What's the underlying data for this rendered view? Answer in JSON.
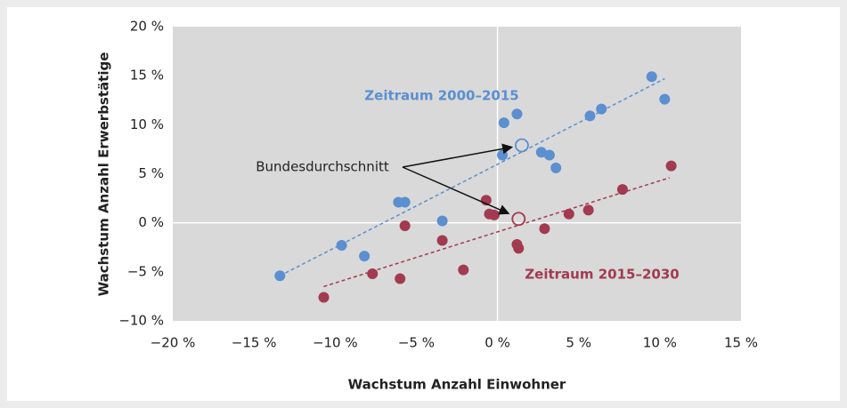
{
  "chart_data": {
    "type": "scatter",
    "x_label": "Wachstum Anzahl Einwohner",
    "y_label": "Wachstum Anzahl Erwerbstätige",
    "xlim": [
      -20,
      15
    ],
    "ylim": [
      -10,
      20
    ],
    "xticks": [
      {
        "value": -20,
        "label": "−20 %"
      },
      {
        "value": -15,
        "label": "−15 %"
      },
      {
        "value": -10,
        "label": "−10 %"
      },
      {
        "value": -5,
        "label": "−5 %"
      },
      {
        "value": 0,
        "label": "0 %"
      },
      {
        "value": 5,
        "label": "5 %"
      },
      {
        "value": 10,
        "label": "10 %"
      },
      {
        "value": 15,
        "label": "15 %"
      }
    ],
    "yticks": [
      {
        "value": -10,
        "label": "−10 %"
      },
      {
        "value": -5,
        "label": "−5 %"
      },
      {
        "value": 0,
        "label": "0 %"
      },
      {
        "value": 5,
        "label": "5 %"
      },
      {
        "value": 10,
        "label": "10 %"
      },
      {
        "value": 15,
        "label": "15 %"
      },
      {
        "value": 20,
        "label": "20 %"
      }
    ],
    "annotation": "Bundesdurchschnitt",
    "series": [
      {
        "name": "Zeitraum 2000–2015",
        "color": "#5b8fd0",
        "x": [
          -13.4,
          -9.6,
          -8.2,
          -6.1,
          -5.7,
          -3.4,
          0.4,
          1.2,
          0.3,
          2.7,
          3.2,
          3.6,
          5.7,
          6.4,
          9.5,
          10.3
        ],
        "values": [
          -5.4,
          -2.3,
          -3.4,
          2.1,
          2.1,
          0.2,
          10.2,
          11.1,
          6.9,
          7.2,
          6.9,
          5.6,
          10.9,
          11.6,
          14.9,
          12.6
        ],
        "average": {
          "x": 1.5,
          "y": 7.9
        },
        "trend": {
          "x": [
            -13.4,
            10.3
          ],
          "y": [
            -5.4,
            14.7
          ]
        }
      },
      {
        "name": "Zeitraum 2015–2030",
        "color": "#a23a50",
        "x": [
          -10.7,
          -7.7,
          -6.0,
          -5.7,
          -3.4,
          -2.1,
          -0.7,
          -0.5,
          -0.2,
          1.2,
          1.3,
          2.9,
          4.4,
          5.6,
          7.7,
          10.7
        ],
        "values": [
          -7.6,
          -5.2,
          -5.7,
          -0.3,
          -1.8,
          -4.8,
          2.3,
          0.9,
          0.8,
          -2.2,
          -2.6,
          -0.6,
          0.9,
          1.3,
          3.4,
          5.8
        ],
        "average": {
          "x": 1.3,
          "y": 0.4
        },
        "trend": {
          "x": [
            -10.7,
            10.6
          ],
          "y": [
            -6.5,
            4.6
          ]
        }
      }
    ]
  }
}
